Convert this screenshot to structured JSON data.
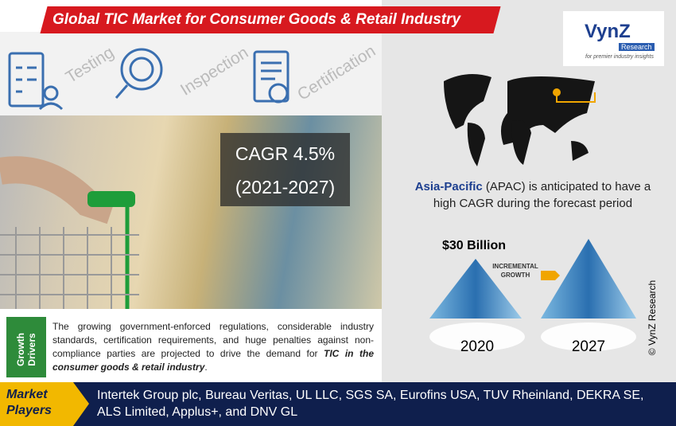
{
  "header": {
    "title": "Global TIC Market for Consumer Goods & Retail Industry"
  },
  "services": [
    "Testing",
    "Inspection",
    "Certification"
  ],
  "cagr": {
    "rate": "CAGR 4.5%",
    "period": "(2021-2027)"
  },
  "logo": {
    "name": "VynZ",
    "sub": "Research",
    "tagline": "for premier industry insights"
  },
  "region": {
    "highlight": "Asia-Pacific",
    "text": " (APAC) is anticipated to have a high CAGR during the forecast period"
  },
  "market": {
    "value": "$30 Billion",
    "growth_label": "INCREMENTAL GROWTH",
    "years": [
      "2020",
      "2027"
    ]
  },
  "copyright": "© VynZ Research",
  "growth_drivers": {
    "label": "Growth Drivers",
    "text": "The growing government-enforced regulations, considerable industry standards, certification requirements, and huge penalties against non-compliance parties are projected to drive the demand for ",
    "emphasis": "TIC in the consumer goods & retail industry",
    "end": "."
  },
  "market_players": {
    "label": "Market Players",
    "text": "Intertek Group plc, Bureau Veritas, UL LLC, SGS SA, Eurofins USA, TUV Rheinland, DEKRA SE, ALS Limited, Applus+, and DNV GL"
  }
}
